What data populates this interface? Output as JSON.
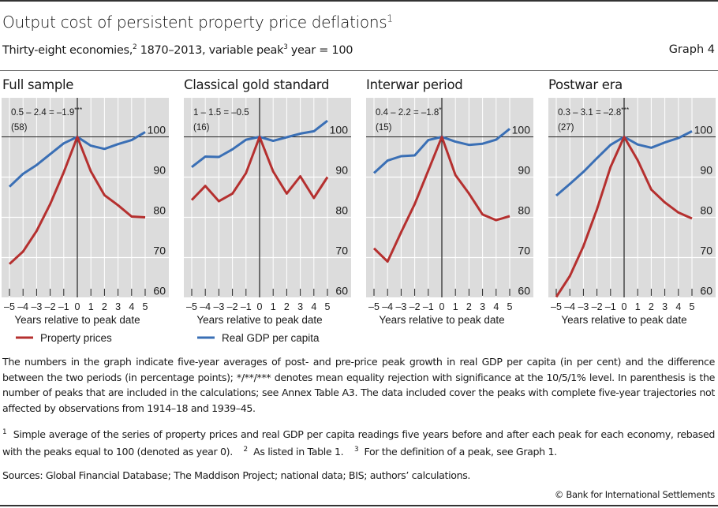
{
  "header": {
    "title": "Output cost of persistent property price deflations",
    "title_footnote": "1",
    "subtitle_part1": "Thirty-eight economies,",
    "subtitle_footnote1": "2",
    "subtitle_part2": " 1870–2013, variable peak",
    "subtitle_footnote2": "3",
    "subtitle_part3": " year = 100",
    "graph_number": "Graph 4"
  },
  "colors": {
    "property": "#b5302f",
    "gdp": "#3a6fb5",
    "plot_bg": "#dcdcdc",
    "grid": "#ffffff",
    "axis": "#222222"
  },
  "legend": [
    {
      "name": "Property prices",
      "color_key": "property"
    },
    {
      "name": "Real GDP per capita",
      "color_key": "gdp"
    }
  ],
  "chart_data": [
    {
      "type": "line",
      "title": "Full sample",
      "annotation": "0.5 – 2.4 = –1.9",
      "annotation_sig": "***",
      "count": "(58)",
      "xlabel": "Years relative to peak date",
      "x": [
        -5,
        -4,
        -3,
        -2,
        -1,
        0,
        1,
        2,
        3,
        4,
        5
      ],
      "x_tick_labels": [
        "–5",
        "–4",
        "–3",
        "–2",
        "–1",
        "0",
        "1",
        "2",
        "3",
        "4",
        "5"
      ],
      "y_ticks": [
        60,
        70,
        80,
        90,
        100
      ],
      "ylim": [
        60,
        110
      ],
      "grid": true,
      "series": [
        {
          "name": "Property prices",
          "values": [
            68.4,
            71.5,
            76.6,
            83.3,
            91.2,
            100,
            91.4,
            85.5,
            83.0,
            80.2,
            80.0
          ]
        },
        {
          "name": "Real GDP per capita",
          "values": [
            87.6,
            90.8,
            93.0,
            95.7,
            98.4,
            100,
            97.8,
            97.0,
            98.2,
            99.2,
            101.2
          ]
        }
      ]
    },
    {
      "type": "line",
      "title": "Classical gold standard",
      "annotation": "1 – 1.5 = –0.5",
      "annotation_sig": "",
      "count": "(16)",
      "xlabel": "Years relative to peak date",
      "x": [
        -5,
        -4,
        -3,
        -2,
        -1,
        0,
        1,
        2,
        3,
        4,
        5
      ],
      "x_tick_labels": [
        "–5",
        "–4",
        "–3",
        "–2",
        "–1",
        "0",
        "1",
        "2",
        "3",
        "4",
        "5"
      ],
      "y_ticks": [
        60,
        70,
        80,
        90,
        100
      ],
      "ylim": [
        60,
        110
      ],
      "grid": true,
      "series": [
        {
          "name": "Property prices",
          "values": [
            84.3,
            87.8,
            84.0,
            85.9,
            91.0,
            100,
            91.4,
            85.9,
            90.2,
            84.8,
            90.0
          ]
        },
        {
          "name": "Real GDP per capita",
          "values": [
            92.5,
            95.1,
            95.0,
            96.9,
            99.3,
            100,
            99.0,
            99.9,
            100.8,
            101.4,
            104.0
          ]
        }
      ]
    },
    {
      "type": "line",
      "title": "Interwar period",
      "annotation": "0.4 – 2.2 = –1.8",
      "annotation_sig": "*",
      "count": "(15)",
      "xlabel": "Years relative to peak date",
      "x": [
        -5,
        -4,
        -3,
        -2,
        -1,
        0,
        1,
        2,
        3,
        4,
        5
      ],
      "x_tick_labels": [
        "–5",
        "–4",
        "–3",
        "–2",
        "–1",
        "0",
        "1",
        "2",
        "3",
        "4",
        "5"
      ],
      "y_ticks": [
        60,
        70,
        80,
        90,
        100
      ],
      "ylim": [
        60,
        110
      ],
      "grid": true,
      "series": [
        {
          "name": "Property prices",
          "values": [
            72.3,
            69.0,
            76.3,
            83.3,
            91.6,
            100,
            90.5,
            85.9,
            80.7,
            79.3,
            80.3
          ]
        },
        {
          "name": "Real GDP per capita",
          "values": [
            91.0,
            94.1,
            95.2,
            95.4,
            99.2,
            100,
            98.8,
            98.0,
            98.3,
            99.3,
            102.0
          ]
        }
      ]
    },
    {
      "type": "line",
      "title": "Postwar era",
      "annotation": "0.3 – 3.1 = –2.8",
      "annotation_sig": "***",
      "count": "(27)",
      "xlabel": "Years relative to peak date",
      "x": [
        -5,
        -4,
        -3,
        -2,
        -1,
        0,
        1,
        2,
        3,
        4,
        5
      ],
      "x_tick_labels": [
        "–5",
        "–4",
        "–3",
        "–2",
        "–1",
        "0",
        "1",
        "2",
        "3",
        "4",
        "5"
      ],
      "y_ticks": [
        60,
        70,
        80,
        90,
        100
      ],
      "ylim": [
        60,
        110
      ],
      "grid": true,
      "series": [
        {
          "name": "Property prices",
          "values": [
            60.2,
            65.4,
            72.8,
            82.0,
            92.5,
            100,
            94.2,
            86.9,
            83.7,
            81.2,
            79.7
          ]
        },
        {
          "name": "Real GDP per capita",
          "values": [
            85.4,
            88.3,
            91.3,
            94.7,
            98.0,
            100,
            98.1,
            97.3,
            98.6,
            99.7,
            101.4
          ]
        }
      ]
    }
  ],
  "notes": {
    "main": "The numbers in the graph indicate five-year averages of post- and pre-price peak growth in real GDP per capita (in per cent) and the difference between the two periods (in percentage points); */**/*** denotes mean equality rejection with significance at the 10/5/1% level. In parenthesis is the number of peaks that are included in the calculations; see Annex Table A3. The data included cover the peaks with complete five-year trajectories not affected by observations from 1914–18 and 1939–45.",
    "footnote1_mark": "1",
    "footnote1": "Simple average of the series of property prices and real GDP per capita readings five years before and after each peak for each economy, rebased with the peaks equal to 100 (denoted as year 0).",
    "footnote2_mark": "2",
    "footnote2": "As listed in Table 1.",
    "footnote3_mark": "3",
    "footnote3": "For the definition of a peak, see Graph 1.",
    "sources": "Sources: Global Financial Database; The Maddison Project; national data; BIS; authors’ calculations.",
    "copyright": "© Bank for International Settlements"
  }
}
